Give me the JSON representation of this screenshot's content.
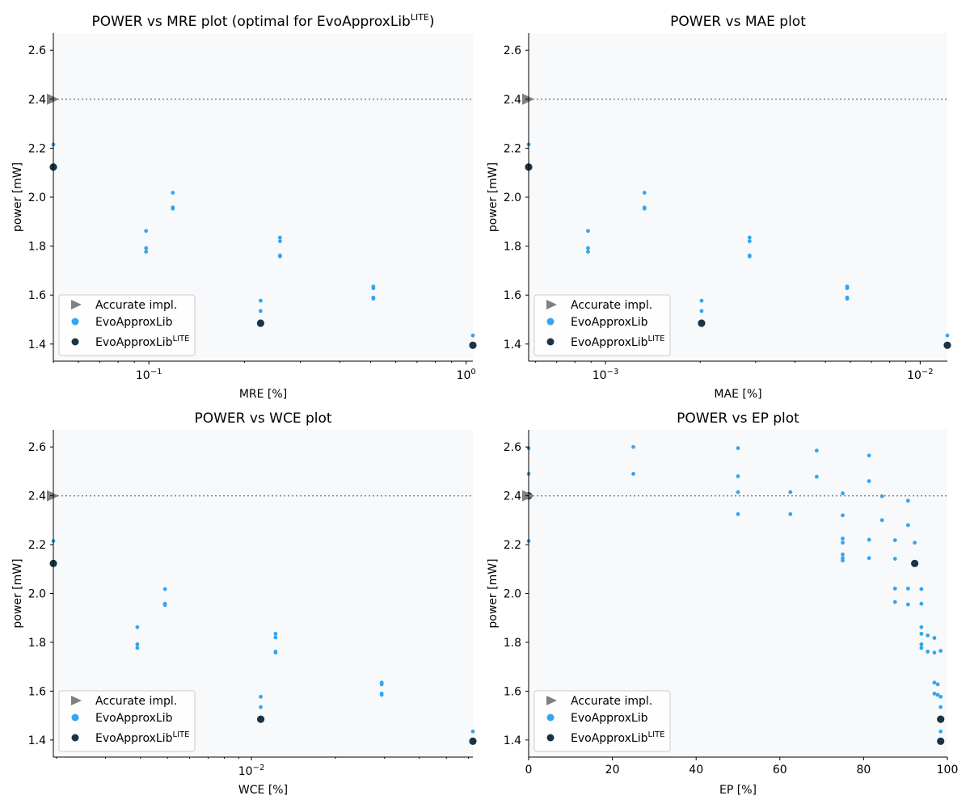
{
  "chart_data": [
    {
      "type": "scatter",
      "title": "POWER vs MRE plot (optimal for EvoApproxLib",
      "title_sup": "LITE",
      "title_suffix": ")",
      "xlabel": "MRE [%]",
      "ylabel": "power [mW]",
      "xscale": "log",
      "xlim": [
        0.05,
        1.05
      ],
      "ylim": [
        1.33,
        2.67
      ],
      "yticks": [
        1.4,
        1.6,
        1.8,
        2.0,
        2.2,
        2.4,
        2.6
      ],
      "xticks": [
        {
          "value": 0.1,
          "base": "10",
          "exp": "−1"
        },
        {
          "value": 1.0,
          "base": "10",
          "exp": "0"
        }
      ],
      "accurate": {
        "x": 0.05,
        "y": 2.4
      },
      "evo": {
        "x": [
          0.05,
          0.098,
          0.098,
          0.098,
          0.119,
          0.119,
          0.119,
          0.225,
          0.225,
          0.259,
          0.259,
          0.259,
          0.259,
          0.51,
          0.51,
          0.51,
          0.51,
          1.05
        ],
        "y": [
          2.215,
          1.862,
          1.792,
          1.777,
          2.018,
          1.958,
          1.953,
          1.577,
          1.535,
          1.835,
          1.82,
          1.762,
          1.758,
          1.635,
          1.628,
          1.59,
          1.585,
          1.435
        ]
      },
      "lite": {
        "x": [
          0.05,
          0.225,
          1.05
        ],
        "y": [
          2.123,
          1.485,
          1.395
        ]
      },
      "legend": [
        "Accurate impl.",
        "EvoApproxLib",
        "EvoApproxLib"
      ],
      "legend_sup": "LITE",
      "legend_loc": "lower-left"
    },
    {
      "type": "scatter",
      "title": "POWER vs MAE plot",
      "xlabel": "MAE [%]",
      "ylabel": "power [mW]",
      "xscale": "log",
      "xlim": [
        0.00057,
        0.0122
      ],
      "ylim": [
        1.33,
        2.67
      ],
      "yticks": [
        1.4,
        1.6,
        1.8,
        2.0,
        2.2,
        2.4,
        2.6
      ],
      "xticks": [
        {
          "value": 0.001,
          "base": "10",
          "exp": "−3"
        },
        {
          "value": 0.01,
          "base": "10",
          "exp": "−2"
        }
      ],
      "accurate": {
        "x": 0.00057,
        "y": 2.4
      },
      "evo": {
        "x": [
          0.00057,
          0.00088,
          0.00088,
          0.00088,
          0.00133,
          0.00133,
          0.00133,
          0.00202,
          0.00202,
          0.00287,
          0.00287,
          0.00287,
          0.00287,
          0.00586,
          0.00586,
          0.00586,
          0.00586,
          0.0122
        ],
        "y": [
          2.215,
          1.862,
          1.792,
          1.777,
          2.018,
          1.958,
          1.953,
          1.577,
          1.535,
          1.835,
          1.82,
          1.762,
          1.758,
          1.635,
          1.628,
          1.59,
          1.585,
          1.435
        ]
      },
      "lite": {
        "x": [
          0.00057,
          0.00202,
          0.0122
        ],
        "y": [
          2.123,
          1.485,
          1.395
        ]
      },
      "legend": [
        "Accurate impl.",
        "EvoApproxLib",
        "EvoApproxLib"
      ],
      "legend_sup": "LITE",
      "legend_loc": "lower-left"
    },
    {
      "type": "scatter",
      "title": "POWER vs WCE plot",
      "xlabel": "WCE [%]",
      "ylabel": "power [mW]",
      "xscale": "log",
      "xlim": [
        0.00195,
        0.0622
      ],
      "ylim": [
        1.33,
        2.67
      ],
      "yticks": [
        1.4,
        1.6,
        1.8,
        2.0,
        2.2,
        2.4,
        2.6
      ],
      "xticks": [
        {
          "value": 0.01,
          "base": "10",
          "exp": "−2"
        }
      ],
      "accurate": {
        "x": 0.00195,
        "y": 2.4
      },
      "evo": {
        "x": [
          0.00195,
          0.0039,
          0.0039,
          0.0039,
          0.0049,
          0.0049,
          0.0049,
          0.0108,
          0.0108,
          0.0122,
          0.0122,
          0.0122,
          0.0122,
          0.0293,
          0.0293,
          0.0293,
          0.0293,
          0.0622
        ],
        "y": [
          2.215,
          1.862,
          1.792,
          1.777,
          2.018,
          1.958,
          1.953,
          1.577,
          1.535,
          1.835,
          1.82,
          1.762,
          1.758,
          1.635,
          1.628,
          1.59,
          1.585,
          1.435
        ]
      },
      "lite": {
        "x": [
          0.00195,
          0.0108,
          0.0622
        ],
        "y": [
          2.123,
          1.485,
          1.395
        ]
      },
      "legend": [
        "Accurate impl.",
        "EvoApproxLib",
        "EvoApproxLib"
      ],
      "legend_sup": "LITE",
      "legend_loc": "lower-left"
    },
    {
      "type": "scatter",
      "title": "POWER vs EP plot",
      "xlabel": "EP [%]",
      "ylabel": "power [mW]",
      "xscale": "linear",
      "xlim": [
        0,
        100
      ],
      "ylim": [
        1.33,
        2.67
      ],
      "yticks": [
        1.4,
        1.6,
        1.8,
        2.0,
        2.2,
        2.4,
        2.6
      ],
      "xticks": [
        {
          "value": 0,
          "label": "0"
        },
        {
          "value": 20,
          "label": "20"
        },
        {
          "value": 40,
          "label": "40"
        },
        {
          "value": 60,
          "label": "60"
        },
        {
          "value": 80,
          "label": "80"
        },
        {
          "value": 100,
          "label": "100"
        }
      ],
      "accurate": {
        "x": 0,
        "y": 2.4
      },
      "evo": {
        "x": [
          0,
          0,
          0,
          25,
          25,
          50,
          50,
          50,
          50,
          62.5,
          62.5,
          68.8,
          68.8,
          75,
          75,
          75,
          75,
          75,
          75,
          75,
          81.3,
          81.3,
          81.3,
          81.3,
          84.4,
          84.4,
          87.5,
          87.5,
          87.5,
          87.5,
          90.6,
          90.6,
          90.6,
          90.6,
          92.2,
          93.8,
          93.8,
          93.8,
          93.8,
          93.8,
          93.8,
          95.3,
          95.3,
          96.9,
          96.9,
          96.9,
          96.9,
          97.7,
          97.7,
          98.4,
          98.4,
          98.4,
          98.4
        ],
        "y": [
          2.595,
          2.49,
          2.215,
          2.6,
          2.49,
          2.595,
          2.48,
          2.415,
          2.325,
          2.415,
          2.325,
          2.585,
          2.478,
          2.41,
          2.32,
          2.225,
          2.208,
          2.16,
          2.145,
          2.135,
          2.565,
          2.46,
          2.22,
          2.145,
          2.398,
          2.3,
          2.218,
          2.142,
          2.02,
          1.965,
          2.38,
          2.28,
          2.02,
          1.955,
          2.208,
          2.018,
          1.958,
          1.862,
          1.835,
          1.792,
          1.777,
          1.762,
          1.828,
          1.818,
          1.758,
          1.635,
          1.59,
          1.628,
          1.585,
          1.577,
          1.535,
          1.435,
          1.765
        ]
      },
      "lite": {
        "x": [
          0,
          92.2,
          98.4,
          98.4
        ],
        "y": [
          2.4,
          2.123,
          1.485,
          1.395
        ]
      },
      "legend": [
        "Accurate impl.",
        "EvoApproxLib",
        "EvoApproxLib"
      ],
      "legend_sup": "LITE",
      "legend_loc": "lower-left"
    }
  ],
  "colors": {
    "evo": "#35a5ee",
    "lite": "#1a3446",
    "accurate": "#808080",
    "plot_bg": "#f7f9fb",
    "ref_line": "#808080"
  }
}
